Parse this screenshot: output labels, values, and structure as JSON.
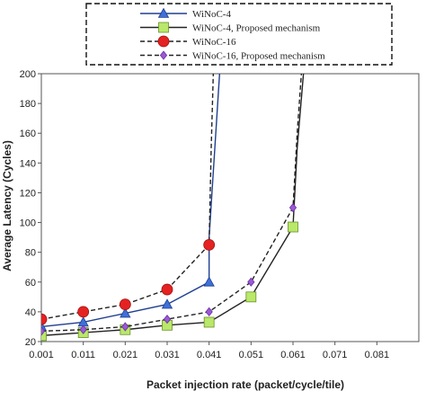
{
  "chart_data": {
    "type": "line",
    "xlabel": "Packet injection rate (packet/cycle/tile)",
    "ylabel": "Average Latency (Cycles)",
    "x_ticks": [
      "0.001",
      "0.011",
      "0.021",
      "0.031",
      "0.041",
      "0.051",
      "0.061",
      "0.071",
      "0.081"
    ],
    "y_ticks": [
      20,
      40,
      60,
      80,
      100,
      120,
      140,
      160,
      180,
      200
    ],
    "xlim": [
      0.001,
      0.091
    ],
    "ylim": [
      20,
      200
    ],
    "grid": false,
    "legend_position": "top-center",
    "series": [
      {
        "name": "WiNoC-4",
        "color": "#1f3f8f",
        "marker_color": "#3f6fd8",
        "marker": "triangle",
        "line_style": "solid",
        "points": [
          [
            0.001,
            30
          ],
          [
            0.011,
            33
          ],
          [
            0.021,
            39
          ],
          [
            0.031,
            45
          ],
          [
            0.041,
            60
          ],
          [
            0.041,
            90
          ],
          [
            0.0435,
            200
          ]
        ]
      },
      {
        "name": "WiNoC-4, Proposed mechanism",
        "color": "#222222",
        "marker_color": "#b9e86a",
        "marker": "square",
        "line_style": "solid",
        "points": [
          [
            0.001,
            24
          ],
          [
            0.011,
            26
          ],
          [
            0.021,
            28
          ],
          [
            0.031,
            31
          ],
          [
            0.041,
            33
          ],
          [
            0.051,
            50
          ],
          [
            0.061,
            97
          ],
          [
            0.062,
            150
          ],
          [
            0.0635,
            200
          ]
        ]
      },
      {
        "name": "WiNoC-16",
        "color": "#222222",
        "marker_color": "#e52222",
        "marker": "circle",
        "line_style": "dashed",
        "points": [
          [
            0.001,
            35
          ],
          [
            0.011,
            40
          ],
          [
            0.021,
            45
          ],
          [
            0.031,
            55
          ],
          [
            0.041,
            85
          ],
          [
            0.0415,
            150
          ],
          [
            0.042,
            200
          ]
        ]
      },
      {
        "name": "WiNoC-16, Proposed mechanism",
        "color": "#222222",
        "marker_color": "#9b59d6",
        "marker": "diamond",
        "line_style": "dashed",
        "points": [
          [
            0.001,
            27
          ],
          [
            0.011,
            28
          ],
          [
            0.021,
            30
          ],
          [
            0.031,
            35
          ],
          [
            0.041,
            40
          ],
          [
            0.051,
            60
          ],
          [
            0.061,
            110
          ],
          [
            0.062,
            160
          ],
          [
            0.063,
            200
          ]
        ]
      }
    ],
    "marker_counts": [
      5,
      7,
      5,
      7
    ]
  }
}
